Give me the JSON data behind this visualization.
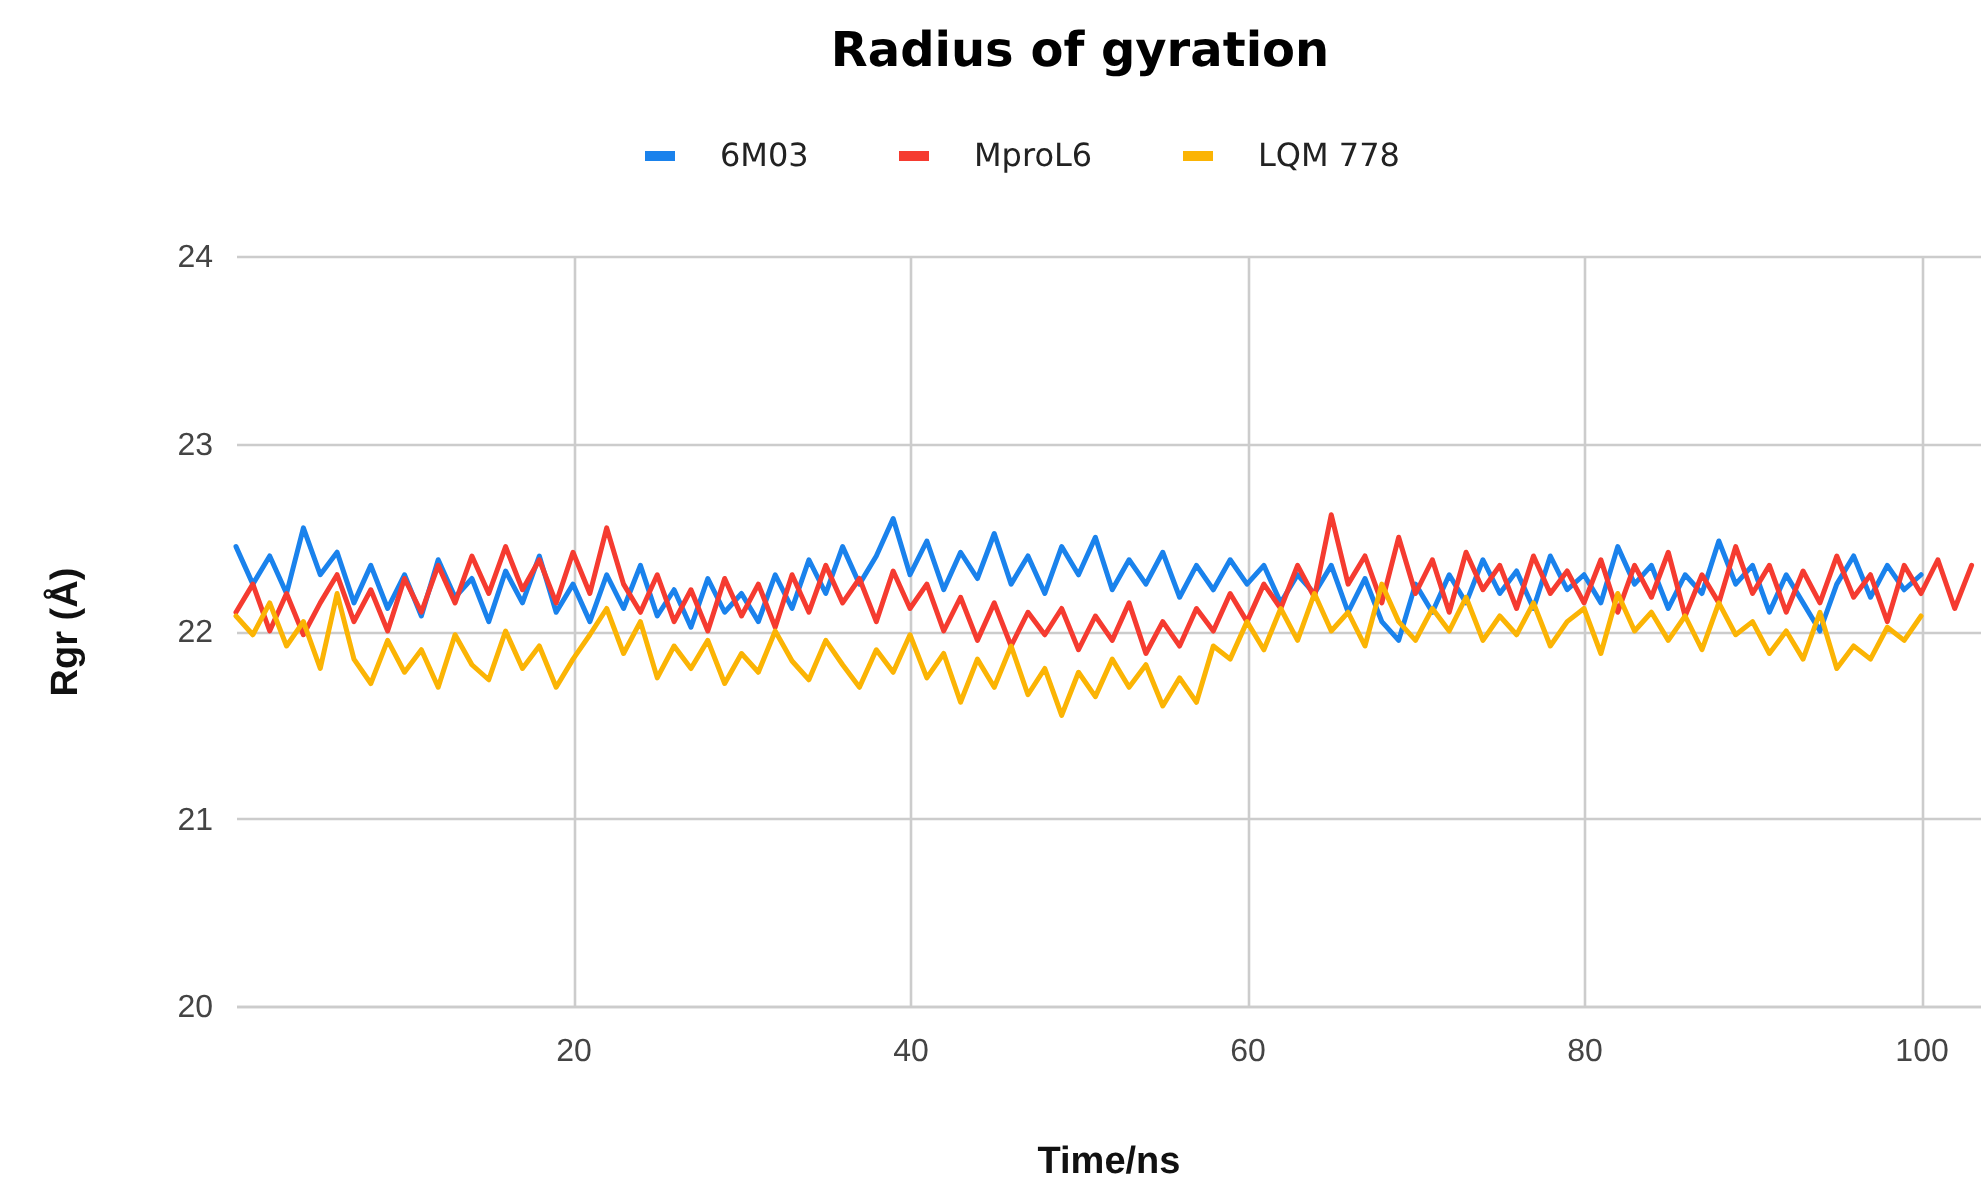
{
  "chart_data": {
    "type": "line",
    "title": "Radius of gyration",
    "xlabel": "Time/ns",
    "ylabel": "Rgr (Å)",
    "x": [
      0,
      1,
      2,
      3,
      4,
      5,
      6,
      7,
      8,
      9,
      10,
      11,
      12,
      13,
      14,
      15,
      16,
      17,
      18,
      19,
      20,
      21,
      22,
      23,
      24,
      25,
      26,
      27,
      28,
      29,
      30,
      31,
      32,
      33,
      34,
      35,
      36,
      37,
      38,
      39,
      40,
      41,
      42,
      43,
      44,
      45,
      46,
      47,
      48,
      49,
      50,
      51,
      52,
      53,
      54,
      55,
      56,
      57,
      58,
      59,
      60,
      61,
      62,
      63,
      64,
      65,
      66,
      67,
      68,
      69,
      70,
      71,
      72,
      73,
      74,
      75,
      76,
      77,
      78,
      79,
      80,
      81,
      82,
      83,
      84,
      85,
      86,
      87,
      88,
      89,
      90,
      91,
      92,
      93,
      94,
      95,
      96,
      97,
      98,
      99,
      100
    ],
    "series": [
      {
        "name": "6M03",
        "color": "#1a82ec",
        "values": [
          22.45,
          22.25,
          22.4,
          22.2,
          22.55,
          22.3,
          22.42,
          22.15,
          22.35,
          22.12,
          22.3,
          22.08,
          22.38,
          22.18,
          22.28,
          22.05,
          22.32,
          22.15,
          22.4,
          22.1,
          22.25,
          22.05,
          22.3,
          22.12,
          22.35,
          22.08,
          22.22,
          22.02,
          22.28,
          22.1,
          22.2,
          22.05,
          22.3,
          22.12,
          22.38,
          22.2,
          22.45,
          22.25,
          22.4,
          22.6,
          22.3,
          22.48,
          22.22,
          22.42,
          22.28,
          22.52,
          22.25,
          22.4,
          22.2,
          22.45,
          22.3,
          22.5,
          22.22,
          22.38,
          22.25,
          22.42,
          22.18,
          22.35,
          22.22,
          22.38,
          22.25,
          22.35,
          22.15,
          22.3,
          22.2,
          22.35,
          22.1,
          22.28,
          22.05,
          21.95,
          22.25,
          22.1,
          22.3,
          22.15,
          22.38,
          22.2,
          22.32,
          22.12,
          22.4,
          22.22,
          22.3,
          22.15,
          22.45,
          22.25,
          22.35,
          22.12,
          22.3,
          22.2,
          22.48,
          22.25,
          22.35,
          22.1,
          22.3,
          22.15,
          22.0,
          22.25,
          22.4,
          22.18,
          22.35,
          22.22,
          22.3
        ]
      },
      {
        "name": "MproL6",
        "color": "#f53b30",
        "x": [
          0,
          1,
          2,
          3,
          4,
          5,
          6,
          7,
          8,
          9,
          10,
          11,
          12,
          13,
          14,
          15,
          16,
          17,
          18,
          19,
          20,
          21,
          22,
          23,
          24,
          25,
          26,
          27,
          28,
          29,
          30,
          31,
          32,
          33,
          34,
          35,
          36,
          37,
          38,
          39,
          40,
          41,
          42,
          43,
          44,
          45,
          46,
          47,
          48,
          49,
          50,
          51,
          52,
          53,
          54,
          55,
          56,
          57,
          58,
          59,
          60,
          61,
          62,
          63,
          64,
          65,
          66,
          67,
          68,
          69,
          70,
          71,
          72,
          73,
          74,
          75,
          76,
          77,
          78,
          79,
          80,
          81,
          82,
          83,
          84,
          85,
          86,
          87,
          88,
          89,
          90,
          91,
          92,
          93,
          94,
          95,
          96,
          97,
          98,
          99,
          100,
          101,
          102,
          103
        ],
        "values": [
          22.1,
          22.25,
          22.0,
          22.2,
          21.98,
          22.15,
          22.3,
          22.05,
          22.22,
          22.0,
          22.28,
          22.1,
          22.35,
          22.15,
          22.4,
          22.2,
          22.45,
          22.22,
          22.38,
          22.15,
          22.42,
          22.2,
          22.55,
          22.25,
          22.1,
          22.3,
          22.05,
          22.22,
          22.0,
          22.28,
          22.08,
          22.25,
          22.02,
          22.3,
          22.1,
          22.35,
          22.15,
          22.28,
          22.05,
          22.32,
          22.12,
          22.25,
          22.0,
          22.18,
          21.95,
          22.15,
          21.92,
          22.1,
          21.98,
          22.12,
          21.9,
          22.08,
          21.95,
          22.15,
          21.88,
          22.05,
          21.92,
          22.12,
          22.0,
          22.2,
          22.05,
          22.25,
          22.12,
          22.35,
          22.18,
          22.62,
          22.25,
          22.4,
          22.15,
          22.5,
          22.2,
          22.38,
          22.1,
          22.42,
          22.22,
          22.35,
          22.12,
          22.4,
          22.2,
          22.32,
          22.15,
          22.38,
          22.1,
          22.35,
          22.18,
          22.42,
          22.08,
          22.3,
          22.15,
          22.45,
          22.2,
          22.35,
          22.1,
          22.32,
          22.15,
          22.4,
          22.18,
          22.3,
          22.05,
          22.35,
          22.2,
          22.38,
          22.12,
          22.35
        ]
      },
      {
        "name": "LQM 778",
        "color": "#fbb404",
        "values": [
          22.08,
          21.98,
          22.15,
          21.92,
          22.05,
          21.8,
          22.2,
          21.85,
          21.72,
          21.95,
          21.78,
          21.9,
          21.7,
          21.98,
          21.82,
          21.74,
          22.0,
          21.8,
          21.92,
          21.7,
          21.85,
          21.98,
          22.12,
          21.88,
          22.05,
          21.75,
          21.92,
          21.8,
          21.95,
          21.72,
          21.88,
          21.78,
          22.0,
          21.84,
          21.74,
          21.95,
          21.82,
          21.7,
          21.9,
          21.78,
          21.98,
          21.75,
          21.88,
          21.62,
          21.85,
          21.7,
          21.92,
          21.66,
          21.8,
          21.55,
          21.78,
          21.65,
          21.85,
          21.7,
          21.82,
          21.6,
          21.75,
          21.62,
          21.92,
          21.85,
          22.05,
          21.9,
          22.12,
          21.95,
          22.2,
          22.0,
          22.1,
          21.92,
          22.25,
          22.05,
          21.95,
          22.12,
          22.0,
          22.18,
          21.95,
          22.08,
          21.98,
          22.15,
          21.92,
          22.05,
          22.12,
          21.88,
          22.2,
          22.0,
          22.1,
          21.95,
          22.08,
          21.9,
          22.15,
          21.98,
          22.05,
          21.88,
          22.0,
          21.85,
          22.1,
          21.8,
          21.92,
          21.85,
          22.02,
          21.95,
          22.08
        ]
      }
    ],
    "xlim": [
      0,
      103.5
    ],
    "ylim": [
      20,
      24
    ],
    "xticks": [
      20,
      40,
      60,
      80,
      100
    ],
    "yticks": [
      20,
      21,
      22,
      23,
      24
    ],
    "grid": true,
    "legend": "top"
  }
}
